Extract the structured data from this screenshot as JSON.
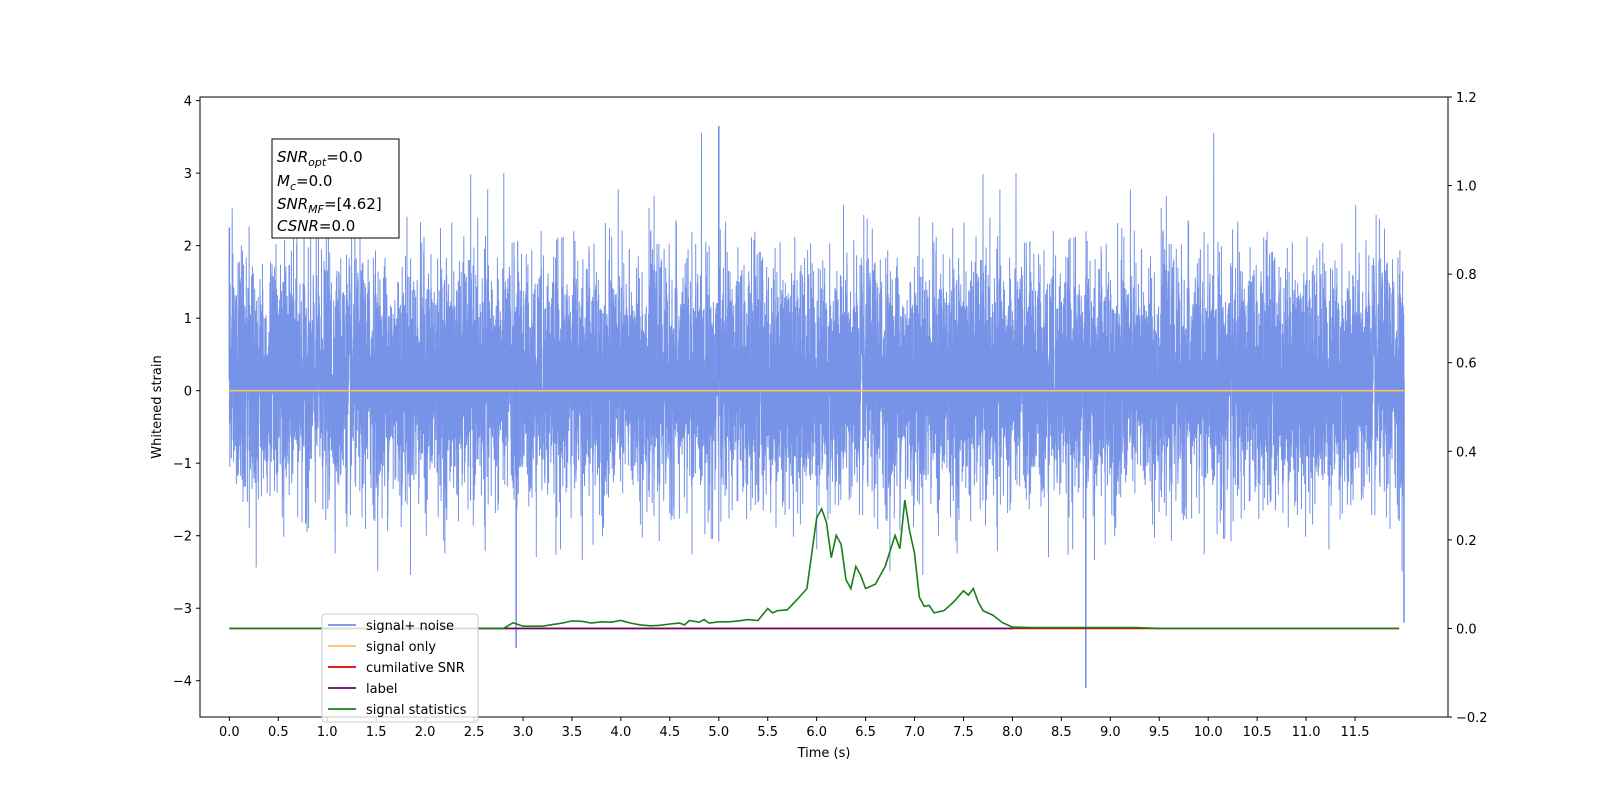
{
  "chart_data": {
    "type": "line",
    "xlabel": "Time (s)",
    "ylabel": "Whitened strain",
    "xlim": [
      -0.3,
      12.45
    ],
    "ylim": [
      -4.5,
      4.05
    ],
    "y2lim": [
      -0.2,
      1.2
    ],
    "x_ticks": [
      "0.0",
      "0.5",
      "1.0",
      "1.5",
      "2.0",
      "2.5",
      "3.0",
      "3.5",
      "4.0",
      "4.5",
      "5.0",
      "5.5",
      "6.0",
      "6.5",
      "7.0",
      "7.5",
      "8.0",
      "8.5",
      "9.0",
      "9.5",
      "10.0",
      "10.5",
      "11.0",
      "11.5"
    ],
    "y_ticks": [
      "4",
      "3",
      "2",
      "1",
      "0",
      "−1",
      "−2",
      "−3",
      "−4"
    ],
    "y2_ticks": [
      "1.2",
      "1.0",
      "0.8",
      "0.6",
      "0.4",
      "0.2",
      "0.0",
      "−0.2"
    ],
    "grid": false,
    "legend_position": "lower-left",
    "series": [
      {
        "name": "signal+ noise",
        "axis": "left",
        "color": "#6f8de6",
        "sample_rate_hz": 1000,
        "x_range": [
          0.0,
          12.0
        ],
        "typical_amplitude": [
          -1.6,
          1.9
        ],
        "extrema": [
          [
            5.0,
            3.65
          ],
          [
            8.75,
            -4.1
          ],
          [
            2.93,
            -3.55
          ],
          [
            0.0,
            2.25
          ],
          [
            12.0,
            -3.2
          ]
        ]
      },
      {
        "name": "signal only",
        "axis": "left",
        "color": "#ffbf60",
        "x": [
          0.0,
          12.0
        ],
        "y": [
          0.0,
          0.0
        ]
      },
      {
        "name": "cumilative SNR",
        "axis": "right",
        "color": "#e00000",
        "x": [
          0.0,
          11.95
        ],
        "y": [
          0.0,
          0.0
        ]
      },
      {
        "name": "label",
        "axis": "right",
        "color": "#6a0d6a",
        "x": [
          1.0,
          8.0
        ],
        "y": [
          0.0,
          0.0
        ]
      },
      {
        "name": "signal statistics",
        "axis": "right",
        "color": "#1a7f1a",
        "x": [
          0.0,
          1.0,
          2.0,
          2.8,
          2.9,
          3.0,
          3.2,
          3.4,
          3.5,
          3.6,
          3.7,
          3.8,
          3.9,
          4.0,
          4.05,
          4.1,
          4.2,
          4.3,
          4.4,
          4.5,
          4.6,
          4.65,
          4.7,
          4.8,
          4.85,
          4.9,
          5.0,
          5.1,
          5.2,
          5.3,
          5.4,
          5.5,
          5.55,
          5.6,
          5.7,
          5.8,
          5.9,
          6.0,
          6.05,
          6.1,
          6.15,
          6.2,
          6.25,
          6.3,
          6.35,
          6.4,
          6.45,
          6.5,
          6.55,
          6.6,
          6.7,
          6.8,
          6.85,
          6.9,
          6.95,
          7.0,
          7.05,
          7.1,
          7.15,
          7.2,
          7.3,
          7.4,
          7.5,
          7.55,
          7.6,
          7.65,
          7.7,
          7.8,
          7.9,
          8.0,
          8.2,
          8.5,
          9.0,
          9.25,
          9.5,
          10.0,
          11.95
        ],
        "y": [
          0.0,
          0.0,
          0.0,
          0.0,
          0.013,
          0.005,
          0.005,
          0.012,
          0.017,
          0.016,
          0.012,
          0.015,
          0.014,
          0.018,
          0.015,
          0.012,
          0.008,
          0.006,
          0.007,
          0.01,
          0.012,
          0.008,
          0.018,
          0.014,
          0.02,
          0.012,
          0.015,
          0.015,
          0.017,
          0.02,
          0.018,
          0.045,
          0.035,
          0.04,
          0.042,
          0.065,
          0.09,
          0.25,
          0.27,
          0.24,
          0.16,
          0.21,
          0.19,
          0.11,
          0.09,
          0.14,
          0.12,
          0.09,
          0.095,
          0.1,
          0.14,
          0.21,
          0.18,
          0.29,
          0.22,
          0.17,
          0.07,
          0.05,
          0.052,
          0.035,
          0.04,
          0.06,
          0.085,
          0.075,
          0.09,
          0.06,
          0.04,
          0.03,
          0.013,
          0.003,
          0.002,
          0.002,
          0.002,
          0.002,
          0.0,
          0.0,
          0.0
        ]
      }
    ]
  },
  "annotation": {
    "snr_opt": {
      "base": "SNR",
      "sub": "opt",
      "value": "=0.0"
    },
    "mc": {
      "base": "M",
      "sub": "c",
      "value": "=0.0"
    },
    "snr_mf": {
      "base": "SNR",
      "sub": "MF",
      "value": "=[4.62]"
    },
    "csnr": {
      "base": "CSNR",
      "sub": "",
      "value": "=0.0"
    }
  }
}
